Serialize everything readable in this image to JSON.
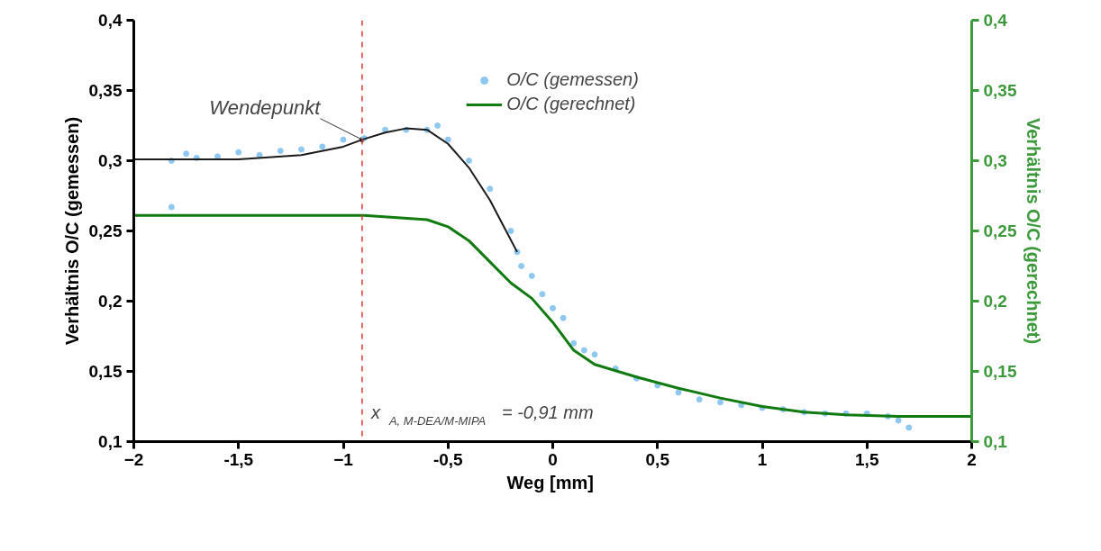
{
  "chart_data": {
    "type": "scatter",
    "xlabel": "Weg  [mm]",
    "ylabel": "Verhältnis O/C (gemessen)",
    "y2label": "Verhältnis O/C (gerechnet)",
    "xlim": [
      -2,
      2
    ],
    "xticks": [
      -2,
      {
        "value": -1.5,
        "label": "-1,5"
      },
      -1,
      {
        "value": -0.5,
        "label": "-0,5"
      },
      0,
      {
        "value": 0.5,
        "label": "0,5"
      },
      1,
      {
        "value": 1.5,
        "label": "1,5"
      },
      2
    ],
    "ylim": [
      0.1,
      0.4
    ],
    "yticks": [
      {
        "value": 0.1,
        "label": "0,1"
      },
      {
        "value": 0.15,
        "label": "0,15"
      },
      {
        "value": 0.2,
        "label": "0,2"
      },
      {
        "value": 0.25,
        "label": "0,25"
      },
      {
        "value": 0.3,
        "label": "0,3"
      },
      {
        "value": 0.35,
        "label": "0,35"
      },
      {
        "value": 0.4,
        "label": "0,4"
      }
    ],
    "y2lim": [
      0.1,
      0.4
    ],
    "y2ticks": [
      {
        "value": 0.1,
        "label": "0,1"
      },
      {
        "value": 0.15,
        "label": "0,15"
      },
      {
        "value": 0.2,
        "label": "0,2"
      },
      {
        "value": 0.25,
        "label": "0,25"
      },
      {
        "value": 0.3,
        "label": "0,3"
      },
      {
        "value": 0.35,
        "label": "0,35"
      },
      {
        "value": 0.4,
        "label": "0,4"
      }
    ],
    "grid": false,
    "legend": "top",
    "series": [
      {
        "name": "O/C (gemessen)",
        "marker": "circle",
        "color": "#8ec8f0",
        "x": [
          -1.82,
          -1.82,
          -1.75,
          -1.7,
          -1.6,
          -1.5,
          -1.4,
          -1.3,
          -1.2,
          -1.1,
          -1.0,
          -0.9,
          -0.8,
          -0.7,
          -0.6,
          -0.55,
          -0.5,
          -0.4,
          -0.3,
          -0.2,
          -0.17,
          -0.15,
          -0.1,
          -0.05,
          0,
          0.05,
          0.1,
          0.15,
          0.2,
          0.3,
          0.4,
          0.5,
          0.6,
          0.7,
          0.8,
          0.9,
          1.0,
          1.1,
          1.2,
          1.3,
          1.4,
          1.5,
          1.6,
          1.65,
          1.7
        ],
        "values": [
          0.3,
          0.267,
          0.305,
          0.302,
          0.303,
          0.306,
          0.304,
          0.307,
          0.308,
          0.31,
          0.315,
          0.316,
          0.322,
          0.322,
          0.322,
          0.325,
          0.315,
          0.3,
          0.28,
          0.25,
          0.235,
          0.225,
          0.218,
          0.205,
          0.195,
          0.188,
          0.17,
          0.165,
          0.162,
          0.152,
          0.145,
          0.14,
          0.135,
          0.13,
          0.128,
          0.126,
          0.124,
          0.123,
          0.121,
          0.12,
          0.12,
          0.12,
          0.118,
          0.115,
          0.11
        ]
      },
      {
        "type": "line",
        "color": "#1a1a1a",
        "x": [
          -2,
          -1.5,
          -1.2,
          -1.0,
          -0.91,
          -0.8,
          -0.7,
          -0.6,
          -0.5,
          -0.4,
          -0.3,
          -0.17
        ],
        "values": [
          0.301,
          0.301,
          0.304,
          0.31,
          0.315,
          0.32,
          0.323,
          0.322,
          0.312,
          0.295,
          0.272,
          0.235
        ]
      },
      {
        "name": "O/C (gerechnet)",
        "type": "line",
        "axis": "y2",
        "color": "#117a11",
        "x": [
          -2,
          -0.9,
          -0.6,
          -0.5,
          -0.4,
          -0.3,
          -0.2,
          -0.1,
          0,
          0.1,
          0.2,
          0.4,
          0.6,
          0.8,
          1.0,
          1.2,
          1.4,
          1.65,
          2.0
        ],
        "values": [
          0.261,
          0.261,
          0.258,
          0.253,
          0.243,
          0.228,
          0.213,
          0.202,
          0.185,
          0.165,
          0.155,
          0.146,
          0.138,
          0.131,
          0.125,
          0.121,
          0.119,
          0.118,
          0.118
        ]
      }
    ],
    "ref_lines": [
      {
        "axis": "x",
        "value": -0.91,
        "label": "x$_{A, M-DEA/M-MIPA}$ = -0,91 mm",
        "color": "#e03030",
        "line_style": "dashed"
      }
    ],
    "annotations": [
      {
        "text": "Wendepunkt",
        "x": -0.91,
        "y": 0.315
      }
    ]
  }
}
